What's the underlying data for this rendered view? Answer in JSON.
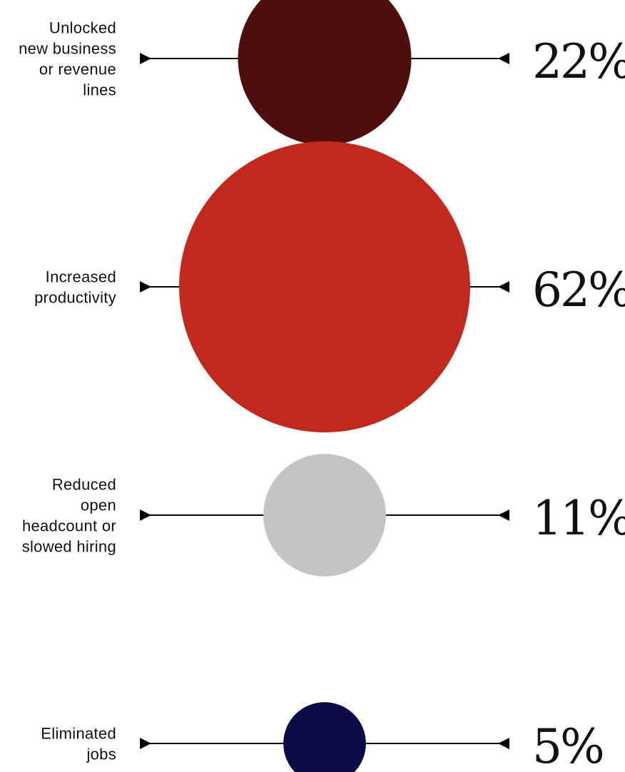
{
  "chart_data": {
    "type": "bubble",
    "title": "",
    "unit": "%",
    "categories": [
      "Unlocked new business or revenue lines",
      "Increased productivity",
      "Reduced open headcount or slowed hiring",
      "Eliminated jobs"
    ],
    "values": [
      22,
      62,
      11,
      5
    ],
    "value_labels": [
      "22%",
      "62%",
      "11%",
      "5%"
    ],
    "label_lines": [
      [
        "Unlocked",
        "new business",
        "or revenue",
        "lines"
      ],
      [
        "Increased",
        "productivity"
      ],
      [
        "Reduced",
        "open",
        "headcount or",
        "slowed hiring"
      ],
      [
        "Eliminated",
        "jobs"
      ]
    ],
    "colors": [
      "#4e0e0c",
      "#c1281e",
      "#c4c4c4",
      "#0b0b45"
    ]
  }
}
